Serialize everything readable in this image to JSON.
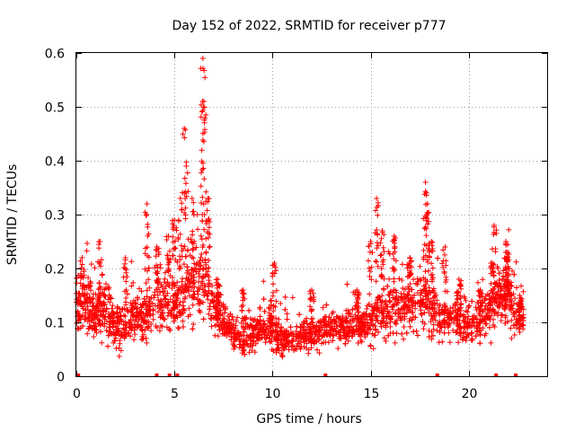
{
  "chart_data": {
    "type": "scatter",
    "title": "Day 152 of 2022, SRMTID for receiver p777",
    "xlabel": "GPS time / hours",
    "ylabel": "SRMTID / TECUs",
    "xlim": [
      0,
      24
    ],
    "ylim": [
      0,
      0.6
    ],
    "xticks": [
      0,
      5,
      10,
      15,
      20
    ],
    "xtick_labels": [
      "0",
      "5",
      "10",
      "15",
      "20"
    ],
    "yticks": [
      0,
      0.1,
      0.2,
      0.3,
      0.4,
      0.5,
      0.6
    ],
    "ytick_labels": [
      "0",
      "0.1",
      "0.2",
      "0.3",
      "0.4",
      "0.5",
      "0.6"
    ],
    "grid": true,
    "marker": "plus",
    "color": "#ff0000",
    "series": [
      {
        "name": "SRMTID",
        "approx_points": 2900,
        "envelope": {
          "hours": [
            0.0,
            0.5,
            1.0,
            1.5,
            2.0,
            2.5,
            3.0,
            3.5,
            4.0,
            4.5,
            5.0,
            5.5,
            6.0,
            6.5,
            7.0,
            7.5,
            8.0,
            8.5,
            9.0,
            9.5,
            10.0,
            10.5,
            11.0,
            11.5,
            12.0,
            12.5,
            13.0,
            13.5,
            14.0,
            14.5,
            15.0,
            15.5,
            16.0,
            16.5,
            17.0,
            17.5,
            18.0,
            18.5,
            19.0,
            19.5,
            20.0,
            20.5,
            21.0,
            21.5,
            22.0,
            22.5,
            22.8
          ],
          "median": [
            0.14,
            0.13,
            0.12,
            0.12,
            0.09,
            0.1,
            0.11,
            0.11,
            0.13,
            0.14,
            0.13,
            0.15,
            0.17,
            0.18,
            0.12,
            0.1,
            0.08,
            0.07,
            0.08,
            0.09,
            0.08,
            0.07,
            0.07,
            0.07,
            0.08,
            0.08,
            0.09,
            0.09,
            0.09,
            0.09,
            0.1,
            0.12,
            0.12,
            0.13,
            0.13,
            0.14,
            0.14,
            0.11,
            0.11,
            0.1,
            0.1,
            0.1,
            0.12,
            0.15,
            0.15,
            0.11,
            0.1
          ],
          "spread": [
            0.05,
            0.05,
            0.05,
            0.05,
            0.04,
            0.05,
            0.05,
            0.05,
            0.05,
            0.06,
            0.05,
            0.06,
            0.07,
            0.07,
            0.05,
            0.04,
            0.03,
            0.03,
            0.03,
            0.03,
            0.03,
            0.03,
            0.03,
            0.03,
            0.03,
            0.03,
            0.03,
            0.03,
            0.03,
            0.03,
            0.04,
            0.05,
            0.05,
            0.05,
            0.05,
            0.06,
            0.06,
            0.04,
            0.04,
            0.04,
            0.04,
            0.04,
            0.05,
            0.05,
            0.06,
            0.04,
            0.03
          ]
        },
        "peaks": [
          {
            "x": 0.3,
            "y": 0.22
          },
          {
            "x": 1.2,
            "y": 0.25
          },
          {
            "x": 2.5,
            "y": 0.22
          },
          {
            "x": 3.6,
            "y": 0.32
          },
          {
            "x": 4.1,
            "y": 0.24
          },
          {
            "x": 4.7,
            "y": 0.26
          },
          {
            "x": 5.0,
            "y": 0.29
          },
          {
            "x": 5.3,
            "y": 0.33
          },
          {
            "x": 5.5,
            "y": 0.46
          },
          {
            "x": 5.6,
            "y": 0.39
          },
          {
            "x": 5.9,
            "y": 0.33
          },
          {
            "x": 6.45,
            "y": 0.59
          },
          {
            "x": 6.5,
            "y": 0.51
          },
          {
            "x": 6.7,
            "y": 0.33
          },
          {
            "x": 7.2,
            "y": 0.18
          },
          {
            "x": 8.5,
            "y": 0.16
          },
          {
            "x": 9.9,
            "y": 0.14
          },
          {
            "x": 10.1,
            "y": 0.21
          },
          {
            "x": 12.0,
            "y": 0.16
          },
          {
            "x": 14.3,
            "y": 0.16
          },
          {
            "x": 15.0,
            "y": 0.25
          },
          {
            "x": 15.3,
            "y": 0.33
          },
          {
            "x": 15.6,
            "y": 0.27
          },
          {
            "x": 16.2,
            "y": 0.26
          },
          {
            "x": 17.0,
            "y": 0.22
          },
          {
            "x": 17.8,
            "y": 0.36
          },
          {
            "x": 17.9,
            "y": 0.32
          },
          {
            "x": 18.1,
            "y": 0.25
          },
          {
            "x": 18.8,
            "y": 0.24
          },
          {
            "x": 19.5,
            "y": 0.18
          },
          {
            "x": 20.6,
            "y": 0.16
          },
          {
            "x": 21.2,
            "y": 0.21
          },
          {
            "x": 21.3,
            "y": 0.28
          },
          {
            "x": 21.9,
            "y": 0.25
          },
          {
            "x": 22.0,
            "y": 0.23
          },
          {
            "x": 22.6,
            "y": 0.15
          }
        ],
        "gap_markers_hours": [
          0.1,
          4.1,
          4.75,
          5.15,
          12.7,
          18.4,
          21.4,
          22.4
        ]
      }
    ]
  }
}
